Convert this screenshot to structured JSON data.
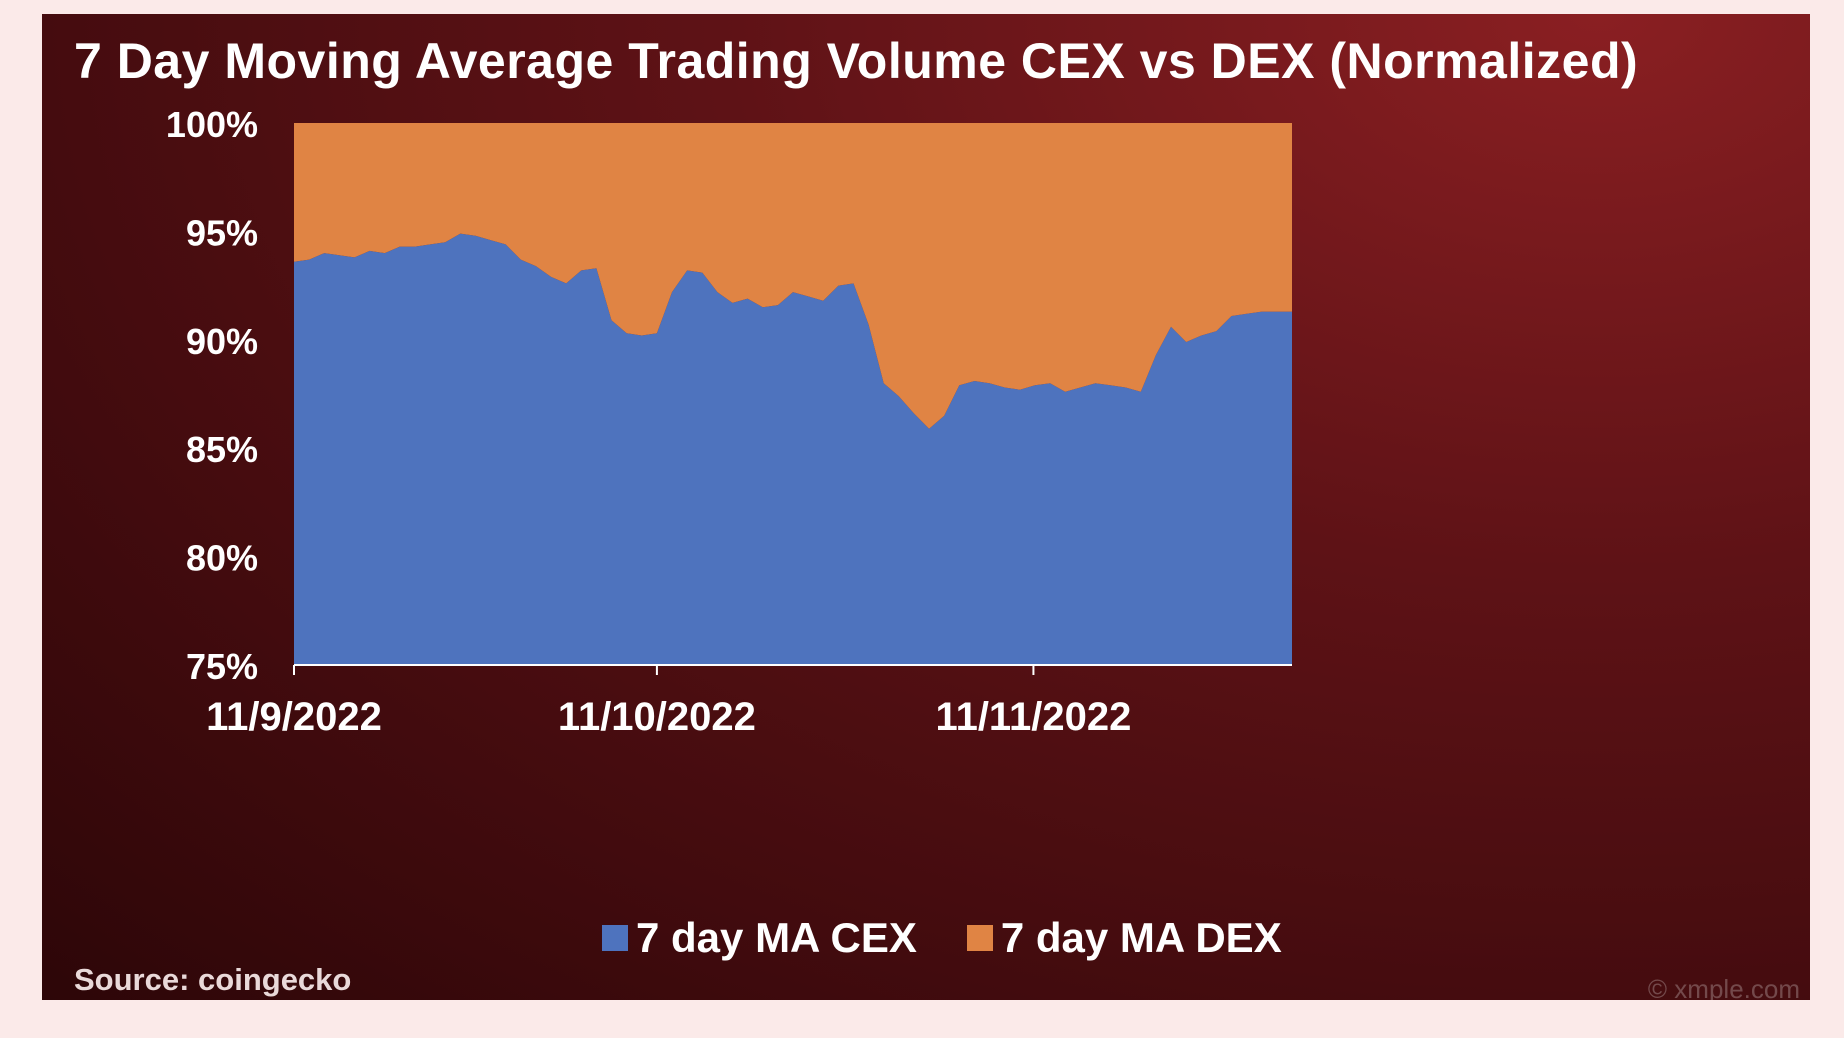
{
  "chart_data": {
    "type": "area",
    "stacked": true,
    "normalized": true,
    "title": "7 Day Moving Average Trading Volume CEX vs DEX (Normalized)",
    "ylim": [
      75,
      100
    ],
    "yticks": [
      "100%",
      "95%",
      "90%",
      "85%",
      "80%",
      "75%"
    ],
    "ytick_values": [
      100,
      95,
      90,
      85,
      80,
      75
    ],
    "xticks": [
      {
        "label": "11/9/2022",
        "x": 0
      },
      {
        "label": "11/10/2022",
        "x": 24
      },
      {
        "label": "11/11/2022",
        "x": 48.9
      }
    ],
    "x": [
      0,
      1,
      2,
      3,
      4,
      5,
      6,
      7,
      8,
      9,
      10,
      11,
      12,
      13,
      14,
      15,
      16,
      17,
      18,
      19,
      20,
      21,
      22,
      23,
      24,
      25,
      26,
      27,
      28,
      29,
      30,
      31,
      32,
      33,
      34,
      35,
      36,
      37,
      38,
      39,
      40,
      41,
      42,
      43,
      44,
      45,
      46,
      47,
      48,
      49,
      50,
      51,
      52,
      53,
      54,
      55,
      56,
      57,
      58,
      59,
      60,
      61,
      62,
      63,
      64,
      65,
      66
    ],
    "series": [
      {
        "name": "7 day MA CEX",
        "color": "#4e73be",
        "values": [
          93.6,
          93.7,
          94.0,
          93.9,
          93.8,
          94.1,
          94.0,
          94.3,
          94.3,
          94.4,
          94.5,
          94.9,
          94.8,
          94.6,
          94.4,
          93.7,
          93.4,
          92.9,
          92.6,
          93.2,
          93.3,
          90.9,
          90.3,
          90.2,
          90.3,
          92.2,
          93.2,
          93.1,
          92.2,
          91.7,
          91.9,
          91.5,
          91.6,
          92.2,
          92.0,
          91.8,
          92.5,
          92.6,
          90.7,
          88.0,
          87.4,
          86.6,
          85.9,
          86.5,
          87.9,
          88.1,
          88.0,
          87.8,
          87.7,
          87.9,
          88.0,
          87.6,
          87.8,
          88.0,
          87.9,
          87.8,
          87.6,
          89.3,
          90.6,
          89.9,
          90.2,
          90.4,
          91.1,
          91.2,
          91.3,
          91.3,
          91.3
        ]
      },
      {
        "name": "7 day MA DEX",
        "color": "#e08444",
        "values": [
          6.4,
          6.3,
          6.0,
          6.1,
          6.2,
          5.9,
          6.0,
          5.7,
          5.7,
          5.6,
          5.5,
          5.1,
          5.2,
          5.4,
          5.6,
          6.3,
          6.6,
          7.1,
          7.4,
          6.8,
          6.7,
          9.1,
          9.7,
          9.8,
          9.7,
          7.8,
          6.8,
          6.9,
          7.8,
          8.3,
          8.1,
          8.5,
          8.4,
          7.8,
          8.0,
          8.2,
          7.5,
          7.4,
          9.3,
          12.0,
          12.6,
          13.4,
          14.1,
          13.5,
          12.1,
          11.9,
          12.0,
          12.2,
          12.3,
          12.1,
          12.0,
          12.4,
          12.2,
          12.0,
          12.1,
          12.2,
          12.4,
          10.7,
          9.4,
          10.1,
          9.8,
          9.6,
          8.9,
          8.8,
          8.7,
          8.7,
          8.7
        ]
      }
    ],
    "legend_position": "bottom-center",
    "grid": false
  },
  "source_text": "Source: coingecko",
  "watermark_text": "© xmple.com"
}
